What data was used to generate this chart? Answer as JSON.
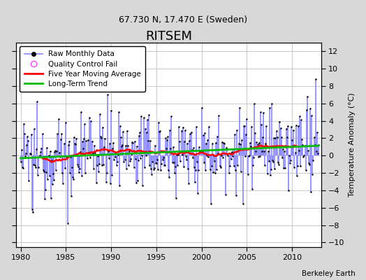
{
  "title": "RITSEM",
  "subtitle": "67.730 N, 17.470 E (Sweden)",
  "ylabel": "Temperature Anomaly (°C)",
  "credit": "Berkeley Earth",
  "xlim": [
    1979.5,
    2013.2
  ],
  "ylim": [
    -10.5,
    13.0
  ],
  "yticks": [
    -10,
    -8,
    -6,
    -4,
    -2,
    0,
    2,
    4,
    6,
    8,
    10,
    12
  ],
  "xticks": [
    1980,
    1985,
    1990,
    1995,
    2000,
    2005,
    2010
  ],
  "start_year": 1980,
  "end_year": 2013,
  "n_months": 396,
  "raw_color": "#4444FF",
  "raw_line_color": "#8888FF",
  "ma_color": "#FF0000",
  "trend_color": "#00BB00",
  "qc_color": "#FF44FF",
  "background_color": "#D8D8D8",
  "plot_bg_color": "#FFFFFF",
  "grid_color": "#C0C0C0",
  "title_fontsize": 13,
  "subtitle_fontsize": 9,
  "seed": 12345
}
